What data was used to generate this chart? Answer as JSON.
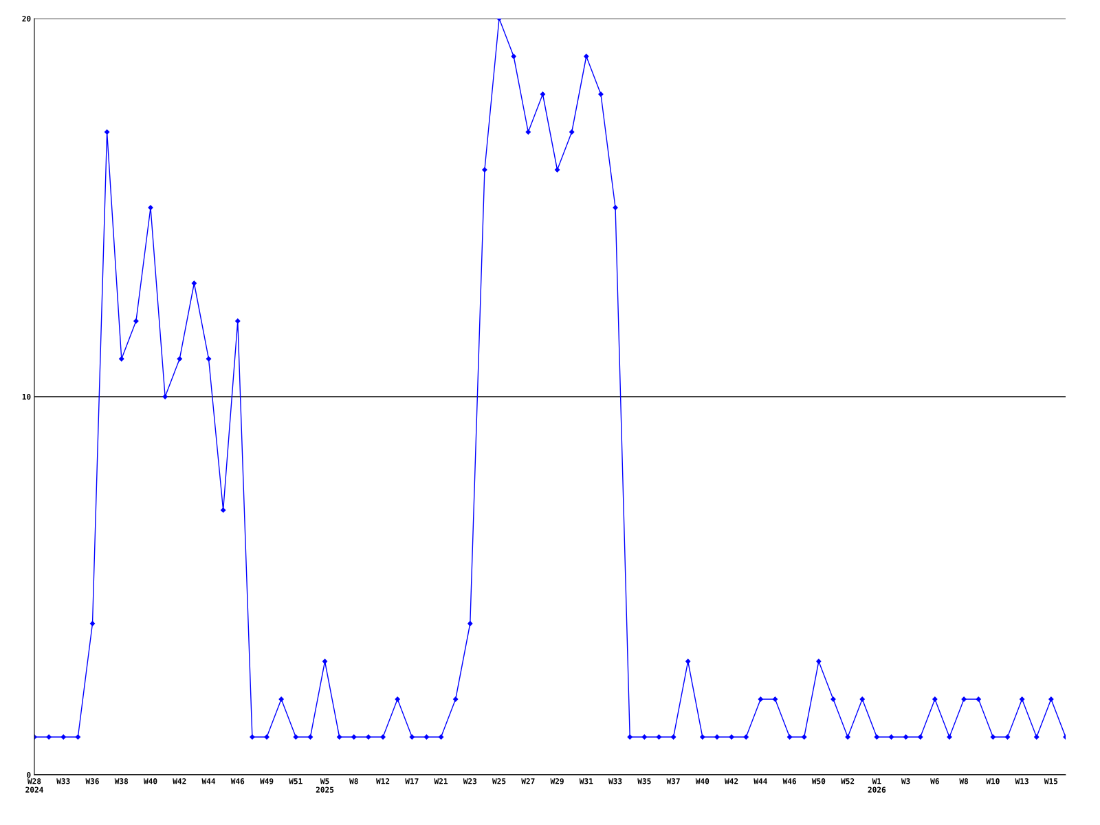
{
  "chart_data": {
    "type": "line",
    "categories": [
      "W28\n2024",
      null,
      "W33",
      null,
      "W36",
      null,
      "W38",
      null,
      "W40",
      null,
      "W42",
      null,
      "W44",
      null,
      "W46",
      null,
      "W49",
      null,
      "W51",
      null,
      "W5\n2025",
      null,
      "W8",
      null,
      "W12",
      null,
      "W17",
      null,
      "W21",
      null,
      "W23",
      null,
      "W25",
      null,
      "W27",
      null,
      "W29",
      null,
      "W31",
      null,
      "W33",
      null,
      "W35",
      null,
      "W37",
      null,
      "W40",
      null,
      "W42",
      null,
      "W44",
      null,
      "W46",
      null,
      "W50",
      null,
      "W52",
      null,
      "W1\n2026",
      null,
      "W3",
      null,
      "W6",
      null,
      "W8",
      null,
      "W10",
      null,
      "W13",
      null,
      "W15",
      null
    ],
    "series": [
      {
        "color": "#0000ff",
        "values": [
          1,
          1,
          1,
          1,
          4,
          17,
          11,
          12,
          15,
          10,
          11,
          13,
          11,
          7,
          12,
          1,
          1,
          2,
          1,
          1,
          3,
          1,
          1,
          1,
          1,
          2,
          1,
          1,
          1,
          2,
          4,
          16,
          20,
          19,
          17,
          18,
          16,
          17,
          19,
          18,
          15,
          1,
          1,
          1,
          1,
          3,
          1,
          1,
          1,
          1,
          2,
          2,
          1,
          1,
          3,
          2,
          1,
          2,
          1,
          1,
          1,
          1,
          2,
          1,
          2,
          2,
          1,
          1,
          2,
          1,
          2,
          1
        ]
      }
    ],
    "ylim": [
      0,
      20
    ],
    "yticks": [
      0,
      10,
      20
    ],
    "grid": "y",
    "marker": "diamond",
    "line_style": "solid",
    "legend": false
  }
}
